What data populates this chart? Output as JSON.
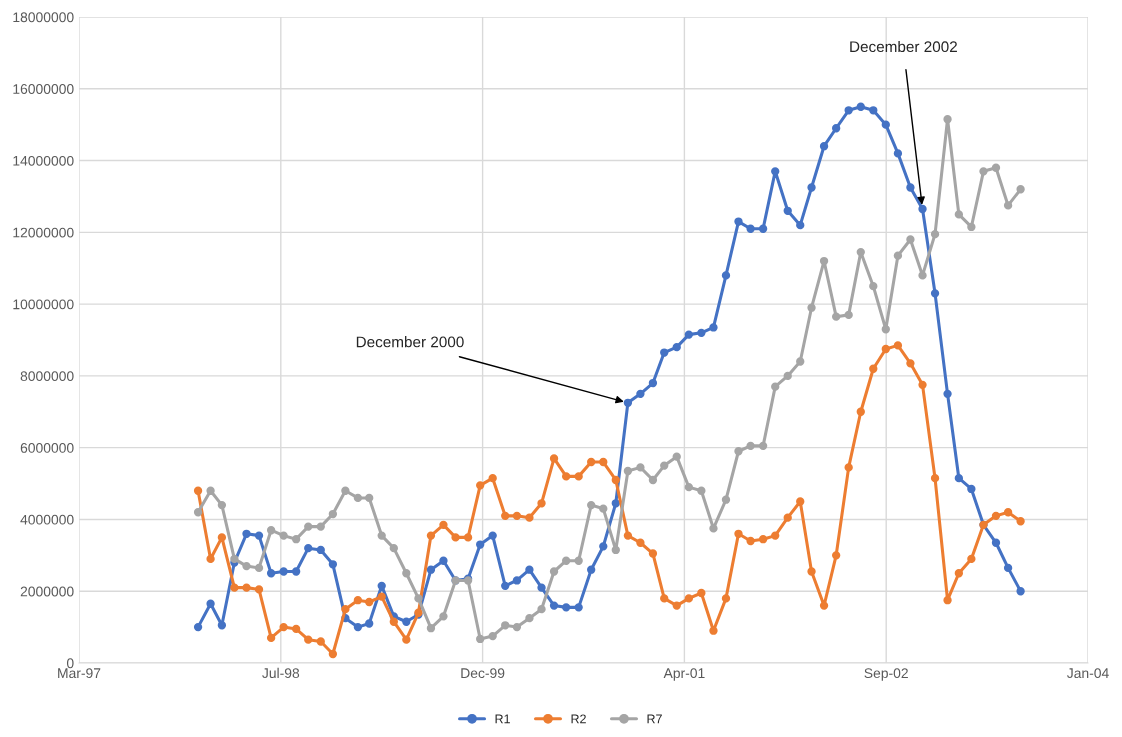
{
  "chart_data": {
    "type": "line",
    "x": [
      "1998-01",
      "1998-02",
      "1998-03",
      "1998-04",
      "1998-05",
      "1998-06",
      "1998-07",
      "1998-08",
      "1998-09",
      "1998-10",
      "1998-11",
      "1998-12",
      "1999-01",
      "1999-02",
      "1999-03",
      "1999-04",
      "1999-05",
      "1999-06",
      "1999-07",
      "1999-08",
      "1999-09",
      "1999-10",
      "1999-11",
      "1999-12",
      "2000-01",
      "2000-02",
      "2000-03",
      "2000-04",
      "2000-05",
      "2000-06",
      "2000-07",
      "2000-08",
      "2000-09",
      "2000-10",
      "2000-11",
      "2000-12",
      "2001-01",
      "2001-02",
      "2001-03",
      "2001-04",
      "2001-05",
      "2001-06",
      "2001-07",
      "2001-08",
      "2001-09",
      "2001-10",
      "2001-11",
      "2001-12",
      "2002-01",
      "2002-02",
      "2002-03",
      "2002-04",
      "2002-05",
      "2002-06",
      "2002-07",
      "2002-08",
      "2002-09",
      "2002-10",
      "2002-11",
      "2002-12",
      "2003-01",
      "2003-02",
      "2003-03",
      "2003-04",
      "2003-05",
      "2003-06",
      "2003-07",
      "2003-08"
    ],
    "series": [
      {
        "name": "R1",
        "color": "#4472c4",
        "values": [
          1000000,
          1650000,
          1050000,
          2800000,
          3600000,
          3550000,
          2500000,
          2550000,
          2550000,
          3200000,
          3150000,
          2750000,
          1250000,
          1000000,
          1100000,
          2150000,
          1300000,
          1150000,
          1350000,
          2600000,
          2850000,
          2300000,
          2350000,
          3300000,
          3550000,
          2150000,
          2300000,
          2600000,
          2100000,
          1600000,
          1550000,
          1550000,
          2600000,
          3250000,
          4450000,
          7250000,
          7500000,
          7800000,
          8650000,
          8800000,
          9150000,
          9200000,
          9350000,
          10800000,
          12300000,
          12100000,
          12100000,
          13700000,
          12600000,
          12200000,
          13250000,
          14400000,
          14900000,
          15400000,
          15500000,
          15400000,
          15000000,
          14200000,
          13250000,
          12650000,
          10300000,
          7500000,
          5150000,
          4850000,
          3850000,
          3350000,
          2650000,
          2000000
        ]
      },
      {
        "name": "R2",
        "color": "#ed7d31",
        "values": [
          4800000,
          2900000,
          3500000,
          2100000,
          2100000,
          2050000,
          700000,
          1000000,
          950000,
          650000,
          600000,
          250000,
          1500000,
          1750000,
          1700000,
          1850000,
          1150000,
          650000,
          1400000,
          3550000,
          3850000,
          3500000,
          3500000,
          4950000,
          5150000,
          4100000,
          4100000,
          4050000,
          4450000,
          5700000,
          5200000,
          5200000,
          5600000,
          5600000,
          5100000,
          3550000,
          3350000,
          3050000,
          1800000,
          1600000,
          1800000,
          1950000,
          900000,
          1800000,
          3600000,
          3400000,
          3450000,
          3550000,
          4050000,
          4500000,
          2550000,
          1600000,
          3000000,
          5450000,
          7000000,
          8200000,
          8750000,
          8850000,
          8350000,
          7750000,
          5150000,
          1750000,
          2500000,
          2900000,
          3850000,
          4100000,
          4200000,
          3950000
        ]
      },
      {
        "name": "R7",
        "color": "#a5a5a5",
        "values": [
          4200000,
          4800000,
          4400000,
          2900000,
          2700000,
          2650000,
          3700000,
          3550000,
          3450000,
          3800000,
          3800000,
          4150000,
          4800000,
          4600000,
          4600000,
          3550000,
          3200000,
          2500000,
          1800000,
          970000,
          1300000,
          2300000,
          2300000,
          670000,
          750000,
          1050000,
          1000000,
          1250000,
          1500000,
          2550000,
          2850000,
          2850000,
          4400000,
          4300000,
          3150000,
          5350000,
          5450000,
          5100000,
          5500000,
          5750000,
          4900000,
          4800000,
          3750000,
          4550000,
          5900000,
          6050000,
          6050000,
          7700000,
          8000000,
          8400000,
          9900000,
          11200000,
          9650000,
          9700000,
          11450000,
          10500000,
          9300000,
          11350000,
          11800000,
          10800000,
          11950000,
          15150000,
          12500000,
          12150000,
          13700000,
          13800000,
          12750000,
          13200000
        ]
      }
    ],
    "xlim": [
      "1997-03-12",
      "2004-01-15"
    ],
    "xticks": [
      {
        "value": "1997-03-12",
        "label": "Mar-97"
      },
      {
        "value": "1998-07-25",
        "label": "Jul-98"
      },
      {
        "value": "1999-12-07",
        "label": "Dec-99"
      },
      {
        "value": "2001-04-20",
        "label": "Apr-01"
      },
      {
        "value": "2002-09-02",
        "label": "Sep-02"
      },
      {
        "value": "2004-01-15",
        "label": "Jan-04"
      }
    ],
    "ylim": [
      0,
      18000000
    ],
    "yticks": [
      0,
      2000000,
      4000000,
      6000000,
      8000000,
      10000000,
      12000000,
      14000000,
      16000000,
      18000000
    ],
    "annotations": [
      {
        "text": "December 2000",
        "x": "2000-12",
        "y": 7250000
      },
      {
        "text": "December 2002",
        "x": "2002-12",
        "y": 12650000
      }
    ],
    "grid": true,
    "legend": "bottom",
    "marker": "circle",
    "line_style": "solid"
  }
}
